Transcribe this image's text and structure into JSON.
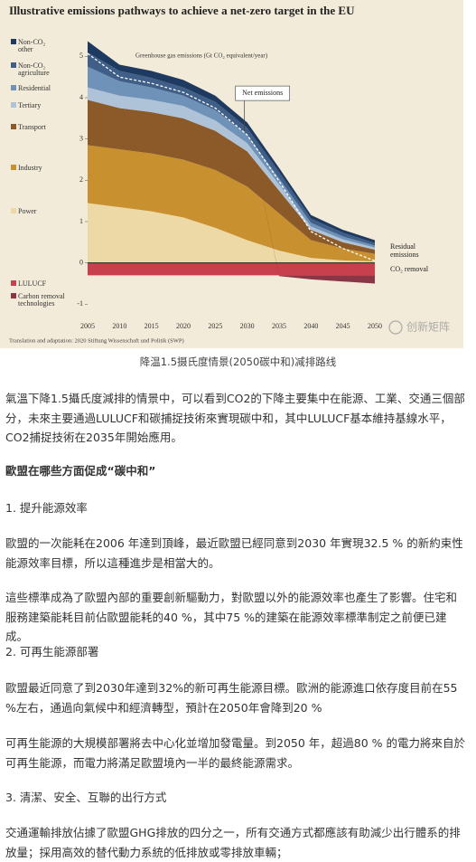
{
  "chart_data": {
    "type": "area",
    "title": "Illustrative emissions pathways to achieve a net-zero target in the EU",
    "y_label": "Greenhouse gas emissions (Gt CO₂ equivalent/year)",
    "annotations": [
      "Residual emissions",
      "CO₂ removal"
    ],
    "source": "Translation and adaptation: 2020 Stiftung Wissenschaft und Politik (SWP)",
    "watermark": "创新矩阵",
    "x": [
      2005,
      2010,
      2015,
      2020,
      2025,
      2030,
      2035,
      2040,
      2045,
      2050
    ],
    "xlim": [
      2005,
      2050
    ],
    "ylim": [
      -1.3,
      5.6
    ],
    "yticks": [
      -1,
      0,
      1,
      2,
      3,
      4,
      5
    ],
    "stacked": true,
    "series": [
      {
        "name": "Power",
        "color": "#ecd9a6",
        "values": [
          1.45,
          1.35,
          1.25,
          1.1,
          0.85,
          0.55,
          0.3,
          0.12,
          0.06,
          0.04
        ]
      },
      {
        "name": "Industry",
        "color": "#c8902f",
        "values": [
          1.4,
          1.4,
          1.4,
          1.4,
          1.4,
          1.3,
          0.9,
          0.43,
          0.29,
          0.18
        ]
      },
      {
        "name": "Transport",
        "color": "#8c5a28",
        "values": [
          1.1,
          1.0,
          1.0,
          1.0,
          0.95,
          0.85,
          0.55,
          0.25,
          0.15,
          0.1
        ]
      },
      {
        "name": "Tertiary",
        "color": "#aec3d8",
        "values": [
          0.3,
          0.3,
          0.3,
          0.3,
          0.25,
          0.2,
          0.15,
          0.08,
          0.07,
          0.05
        ]
      },
      {
        "name": "Residential",
        "color": "#6f92b8",
        "values": [
          0.5,
          0.35,
          0.3,
          0.25,
          0.25,
          0.2,
          0.15,
          0.09,
          0.07,
          0.05
        ]
      },
      {
        "name": "Non-CO₂ agriculture",
        "color": "#3f5f88",
        "values": [
          0.35,
          0.25,
          0.23,
          0.2,
          0.2,
          0.17,
          0.15,
          0.1,
          0.09,
          0.06
        ]
      },
      {
        "name": "Non-CO₂ other",
        "color": "#1f3a60",
        "values": [
          0.27,
          0.15,
          0.17,
          0.18,
          0.15,
          0.13,
          0.1,
          0.09,
          0.07,
          0.07
        ]
      },
      {
        "name": "LULUCF",
        "color": "#c8404e",
        "values": [
          -0.3,
          -0.3,
          -0.3,
          -0.3,
          -0.3,
          -0.3,
          -0.3,
          -0.3,
          -0.3,
          -0.3
        ]
      },
      {
        "name": "Carbon removal technologies",
        "color": "#8a3646",
        "values": [
          0,
          0,
          0,
          0,
          0,
          0,
          -0.02,
          -0.1,
          -0.15,
          -0.2
        ]
      },
      {
        "name": "Net emissions",
        "type": "line",
        "dashed": true,
        "color": "#ffffff",
        "values": [
          5.07,
          4.5,
          4.35,
          4.13,
          3.75,
          3.1,
          1.98,
          0.76,
          0.35,
          0.05
        ]
      }
    ]
  },
  "article": {
    "caption": "降温1.5摄氏度情景(2050碳中和)减排路线",
    "blocks": [
      "氣溫下降1.5攝氏度減排的情景中，可以看到CO2的下降主要集中在能源、工業、交通三個部分，未來主要通過LULUCF和碳捕捉技術來實現碳中和，其中LULUCF基本維持基線水平，CO2捕捉技術在2035年開始應用。",
      "歐盟在哪些方面促成“碳中和”",
      "1. 提升能源效率",
      "歐盟的一次能耗在2006 年達到頂峰，最近歐盟已經同意到2030 年實現32.5 % 的新約束性能源效率目標，所以這種進步是相當大的。",
      "這些標準成為了歐盟內部的重要創新驅動力，對歐盟以外的能源效率也產生了影響。住宅和服務建築能耗目前佔歐盟能耗的40 %，其中75 %的建築在能源效率標準制定之前便已建成。",
      "2. 可再生能源部署",
      "歐盟最近同意了到2030年達到32%的新可再生能源目標。歐洲的能源進口依存度目前在55 %左右，通過向氣候中和經濟轉型，預計在2050年會降到20 %",
      "可再生能源的大規模部署將去中心化並增加發電量。到2050 年，超過80 % 的電力將來自於可再生能源，而電力將滿足歐盟境內一半的最終能源需求。",
      "3. 清潔、安全、互聯的出行方式",
      "交通運輸排放佔據了歐盟GHG排放的四分之一，所有交通方式都應該有助減少出行體系的排放量；採用高效的替代動力系統的低排放或零排放車輛；"
    ]
  }
}
